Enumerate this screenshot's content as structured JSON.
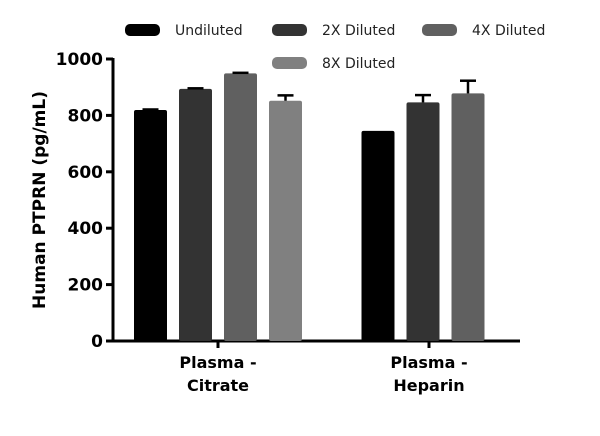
{
  "chart_data": {
    "type": "bar",
    "title": "",
    "xlabel": "",
    "ylabel": "Human  PTPRN (pg/mL)",
    "ylim": [
      0,
      1000
    ],
    "yticks": [
      0,
      200,
      400,
      600,
      800,
      1000
    ],
    "grid": false,
    "legend_position": "top",
    "categories": [
      [
        "Plasma -",
        "Citrate"
      ],
      [
        "Plasma -",
        "Heparin"
      ]
    ],
    "series": [
      {
        "name": "Undiluted",
        "color": "#000000",
        "values": [
          819,
          745
        ],
        "errors": [
          2,
          0
        ]
      },
      {
        "name": "2X Diluted",
        "color": "#333333",
        "values": [
          894,
          846
        ],
        "errors": [
          2,
          26
        ]
      },
      {
        "name": "4X Diluted",
        "color": "#606060",
        "values": [
          949,
          878
        ],
        "errors": [
          2,
          45
        ]
      },
      {
        "name": "8X Diluted",
        "color": "#808080",
        "values": [
          852,
          null
        ],
        "errors": [
          19,
          null
        ]
      }
    ]
  }
}
